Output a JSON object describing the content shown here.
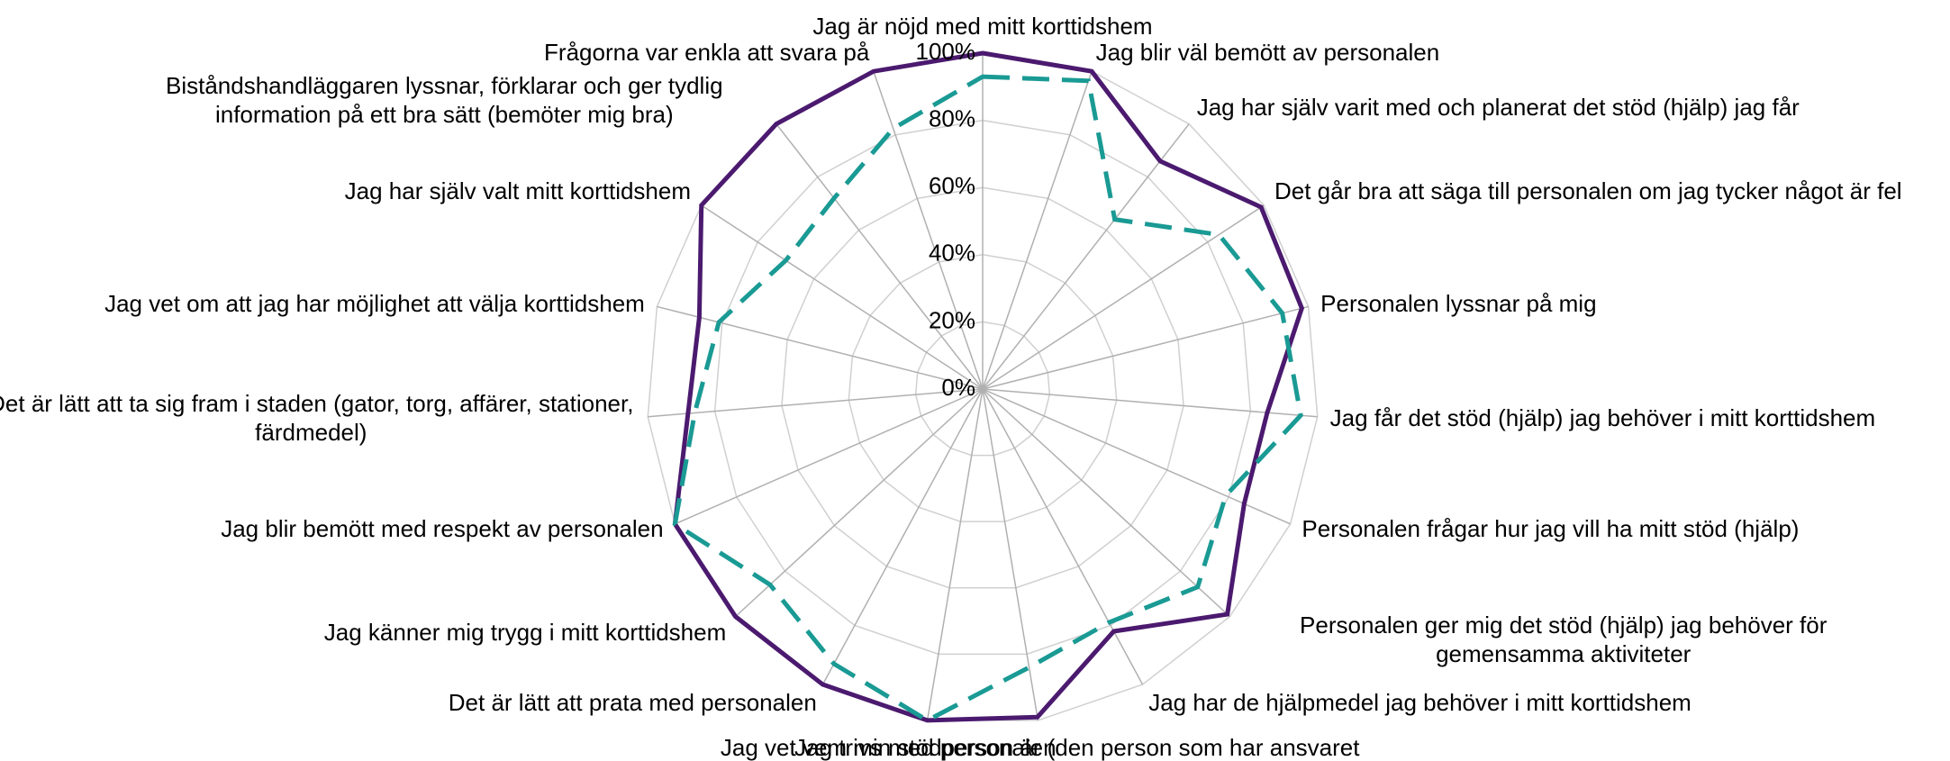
{
  "chart_data": {
    "type": "radar",
    "categories": [
      "Jag är nöjd med mitt korttidshem",
      "Jag blir väl bemött av personalen",
      "Jag har själv varit med och planerat det stöd (hjälp) jag får",
      "Det går bra att säga till personalen om jag tycker något är fel",
      "Personalen lyssnar på mig",
      "Jag får det stöd (hjälp) jag behöver i mitt korttidshem",
      "Personalen frågar hur jag vill ha mitt stöd (hjälp)",
      "Personalen ger mig det stöd (hjälp) jag behöver för gemensamma aktiviteter",
      "Jag har de hjälpmedel jag behöver i mitt korttidshem",
      "Jag vet vem min stödperson är (den person som har ansvaret för mig)",
      "Jag trivs med personalen",
      "Det är lätt att prata med personalen",
      "Jag känner mig trygg i mitt korttidshem",
      "Jag blir bemött med respekt av personalen",
      "Det är lätt att ta sig fram i staden (gator, torg, affärer, stationer, färdmedel)",
      "Jag vet om att jag har möjlighet att välja korttidshem",
      "Jag har själv valt mitt korttidshem",
      "Biståndshandläggaren lyssnar, förklarar och ger tydlig information på ett bra sätt (bemöter mig bra)",
      "Frågorna var enkla att svara på"
    ],
    "series": [
      {
        "color": "#4b1a6f",
        "dashed": false,
        "values": [
          100,
          100,
          86,
          99,
          98,
          85,
          85,
          99,
          82,
          99,
          100,
          100,
          100,
          100,
          88,
          87,
          100,
          100,
          100
        ]
      },
      {
        "color": "#1a9a94",
        "dashed": true,
        "values": [
          93,
          97,
          64,
          84,
          92,
          95,
          79,
          87,
          79,
          84,
          100,
          93,
          86,
          100,
          86,
          81,
          70,
          72,
          82
        ]
      }
    ],
    "ylim": [
      0,
      100
    ],
    "yticks": [
      {
        "value": 0,
        "label": "0%"
      },
      {
        "value": 20,
        "label": "20%"
      },
      {
        "value": 40,
        "label": "40%"
      },
      {
        "value": 60,
        "label": "60%"
      },
      {
        "value": 80,
        "label": "80%"
      },
      {
        "value": 100,
        "label": "100%"
      }
    ],
    "grid": true
  }
}
